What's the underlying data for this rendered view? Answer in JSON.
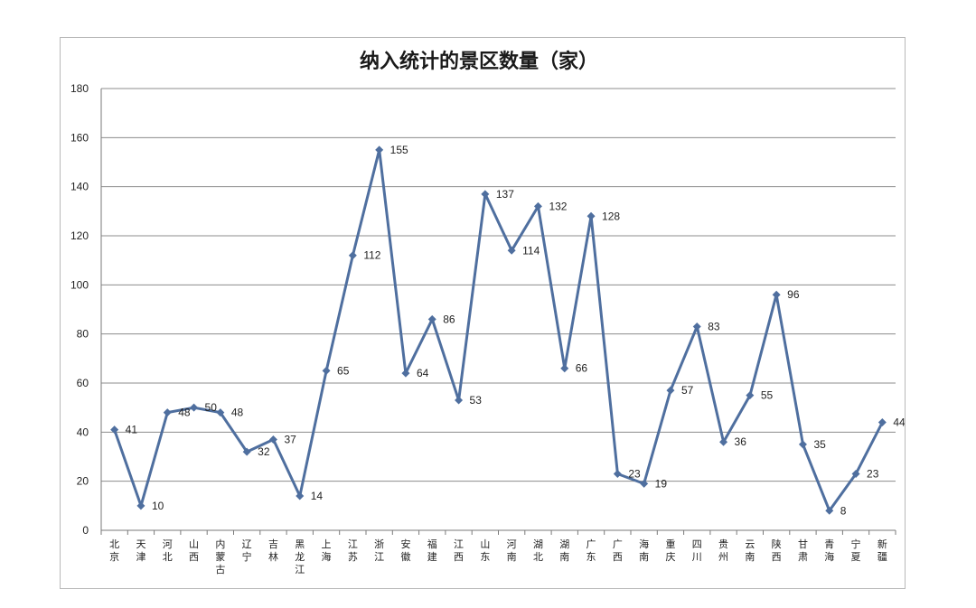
{
  "chart_data": {
    "type": "line",
    "title": "纳入统计的景区数量（家）",
    "xlabel": "",
    "ylabel": "",
    "ylim": [
      0,
      180
    ],
    "yticks": [
      0,
      20,
      40,
      60,
      80,
      100,
      120,
      140,
      160,
      180
    ],
    "grid": true,
    "legend": "none",
    "categories": [
      "北京",
      "天津",
      "河北",
      "山西",
      "内蒙古",
      "辽宁",
      "吉林",
      "黑龙江",
      "上海",
      "江苏",
      "浙江",
      "安徽",
      "福建",
      "江西",
      "山东",
      "河南",
      "湖北",
      "湖南",
      "广东",
      "广西",
      "海南",
      "重庆",
      "四川",
      "贵州",
      "云南",
      "陕西",
      "甘肃",
      "青海",
      "宁夏",
      "新疆"
    ],
    "series": [
      {
        "color": "#4f6f9f",
        "values": [
          41,
          10,
          48,
          50,
          48,
          32,
          37,
          14,
          65,
          112,
          155,
          64,
          86,
          53,
          137,
          114,
          132,
          66,
          128,
          23,
          19,
          57,
          83,
          36,
          55,
          96,
          35,
          8,
          23,
          44
        ]
      }
    ]
  }
}
